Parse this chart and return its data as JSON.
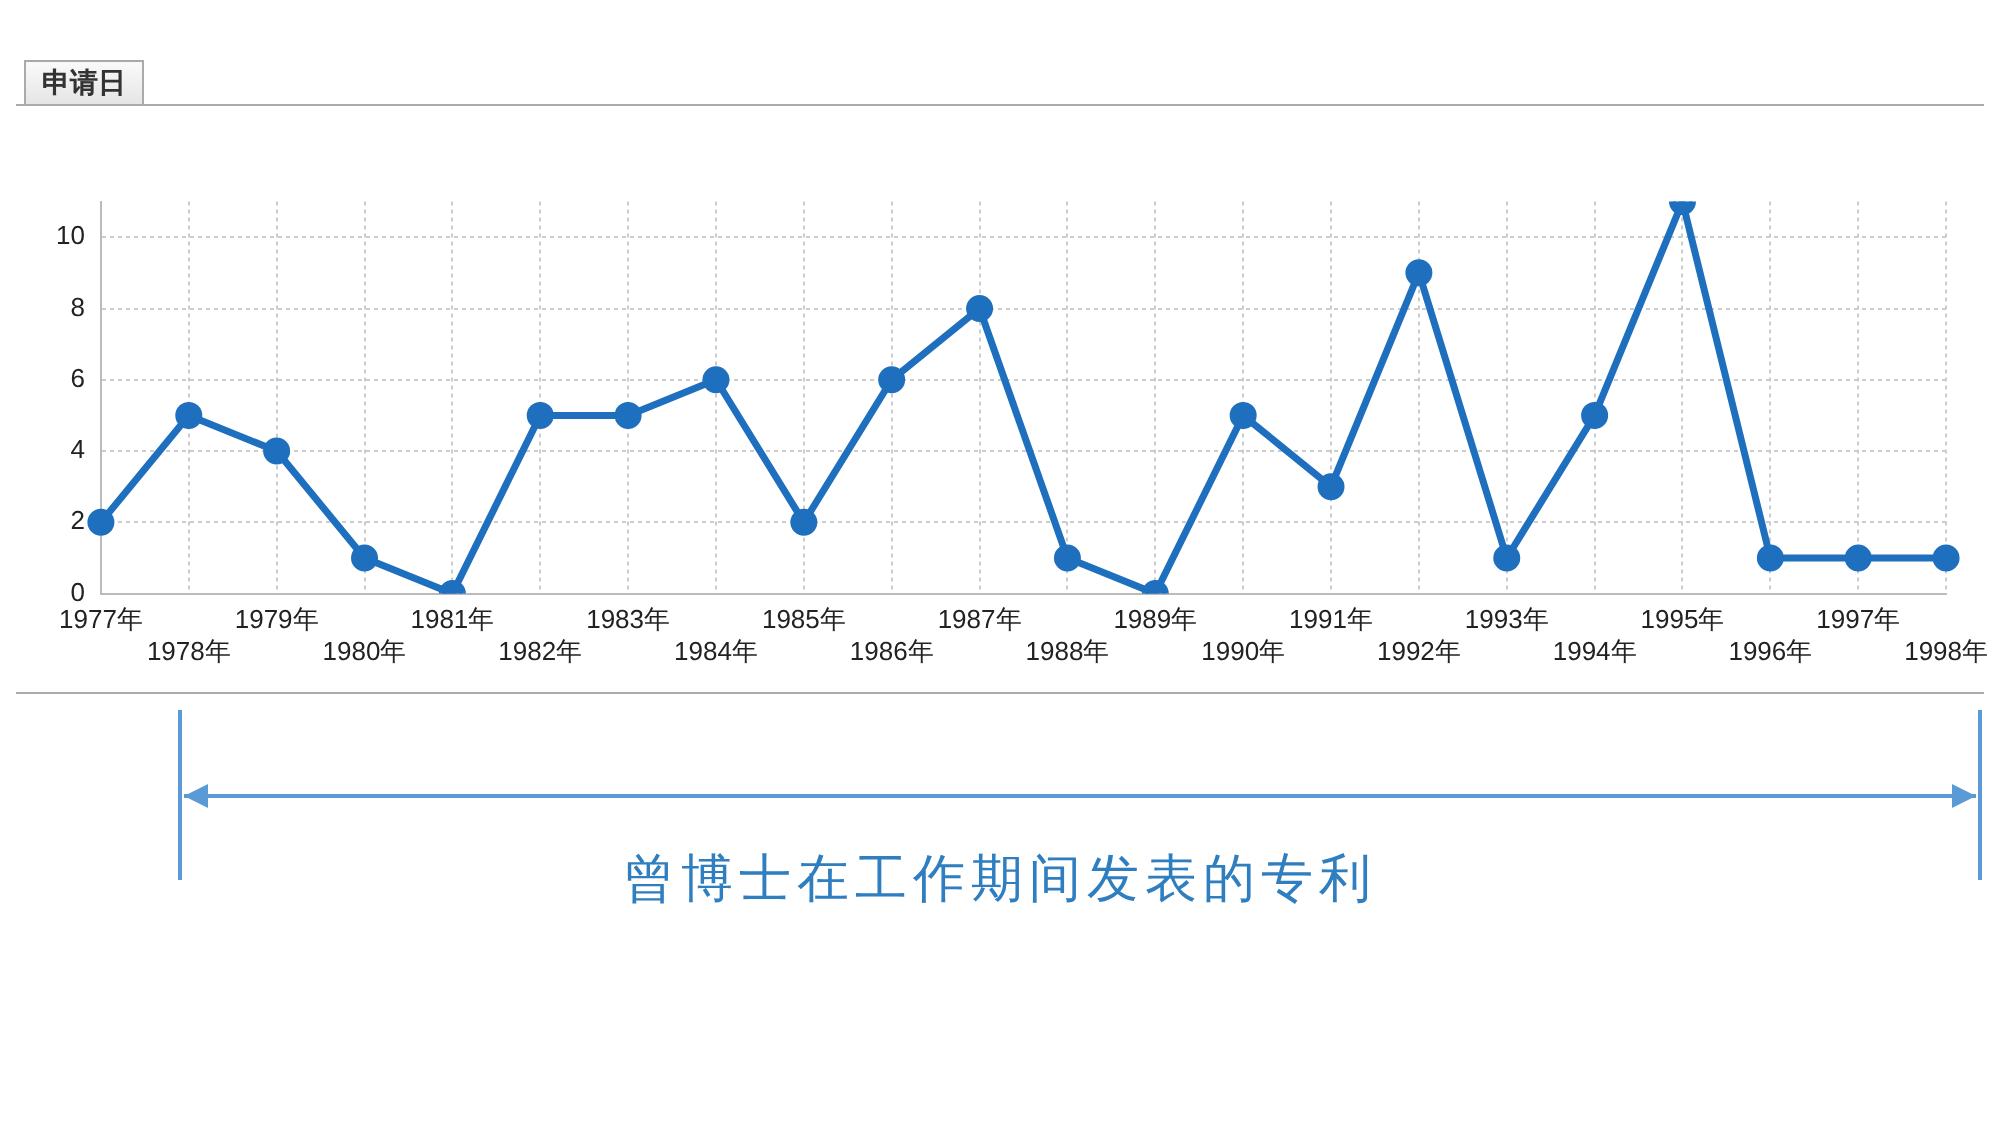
{
  "chart_data": {
    "type": "line",
    "xlabel": "申请日",
    "categories": [
      "1977年",
      "1978年",
      "1979年",
      "1980年",
      "1981年",
      "1982年",
      "1983年",
      "1984年",
      "1985年",
      "1986年",
      "1987年",
      "1988年",
      "1989年",
      "1990年",
      "1991年",
      "1992年",
      "1993年",
      "1994年",
      "1995年",
      "1996年",
      "1997年",
      "1998年"
    ],
    "values": [
      2,
      5,
      4,
      1,
      0,
      5,
      5,
      6,
      2,
      6,
      8,
      1,
      0,
      5,
      3,
      9,
      1,
      5,
      11,
      1,
      1,
      1
    ],
    "color": "#1f6fbf",
    "ylim": [
      0,
      11
    ],
    "yticks": [
      0,
      2,
      4,
      6,
      8,
      10
    ],
    "grid": true,
    "marker": "circle",
    "annotations": [
      "曾博士在工作期间发表的专利"
    ]
  }
}
